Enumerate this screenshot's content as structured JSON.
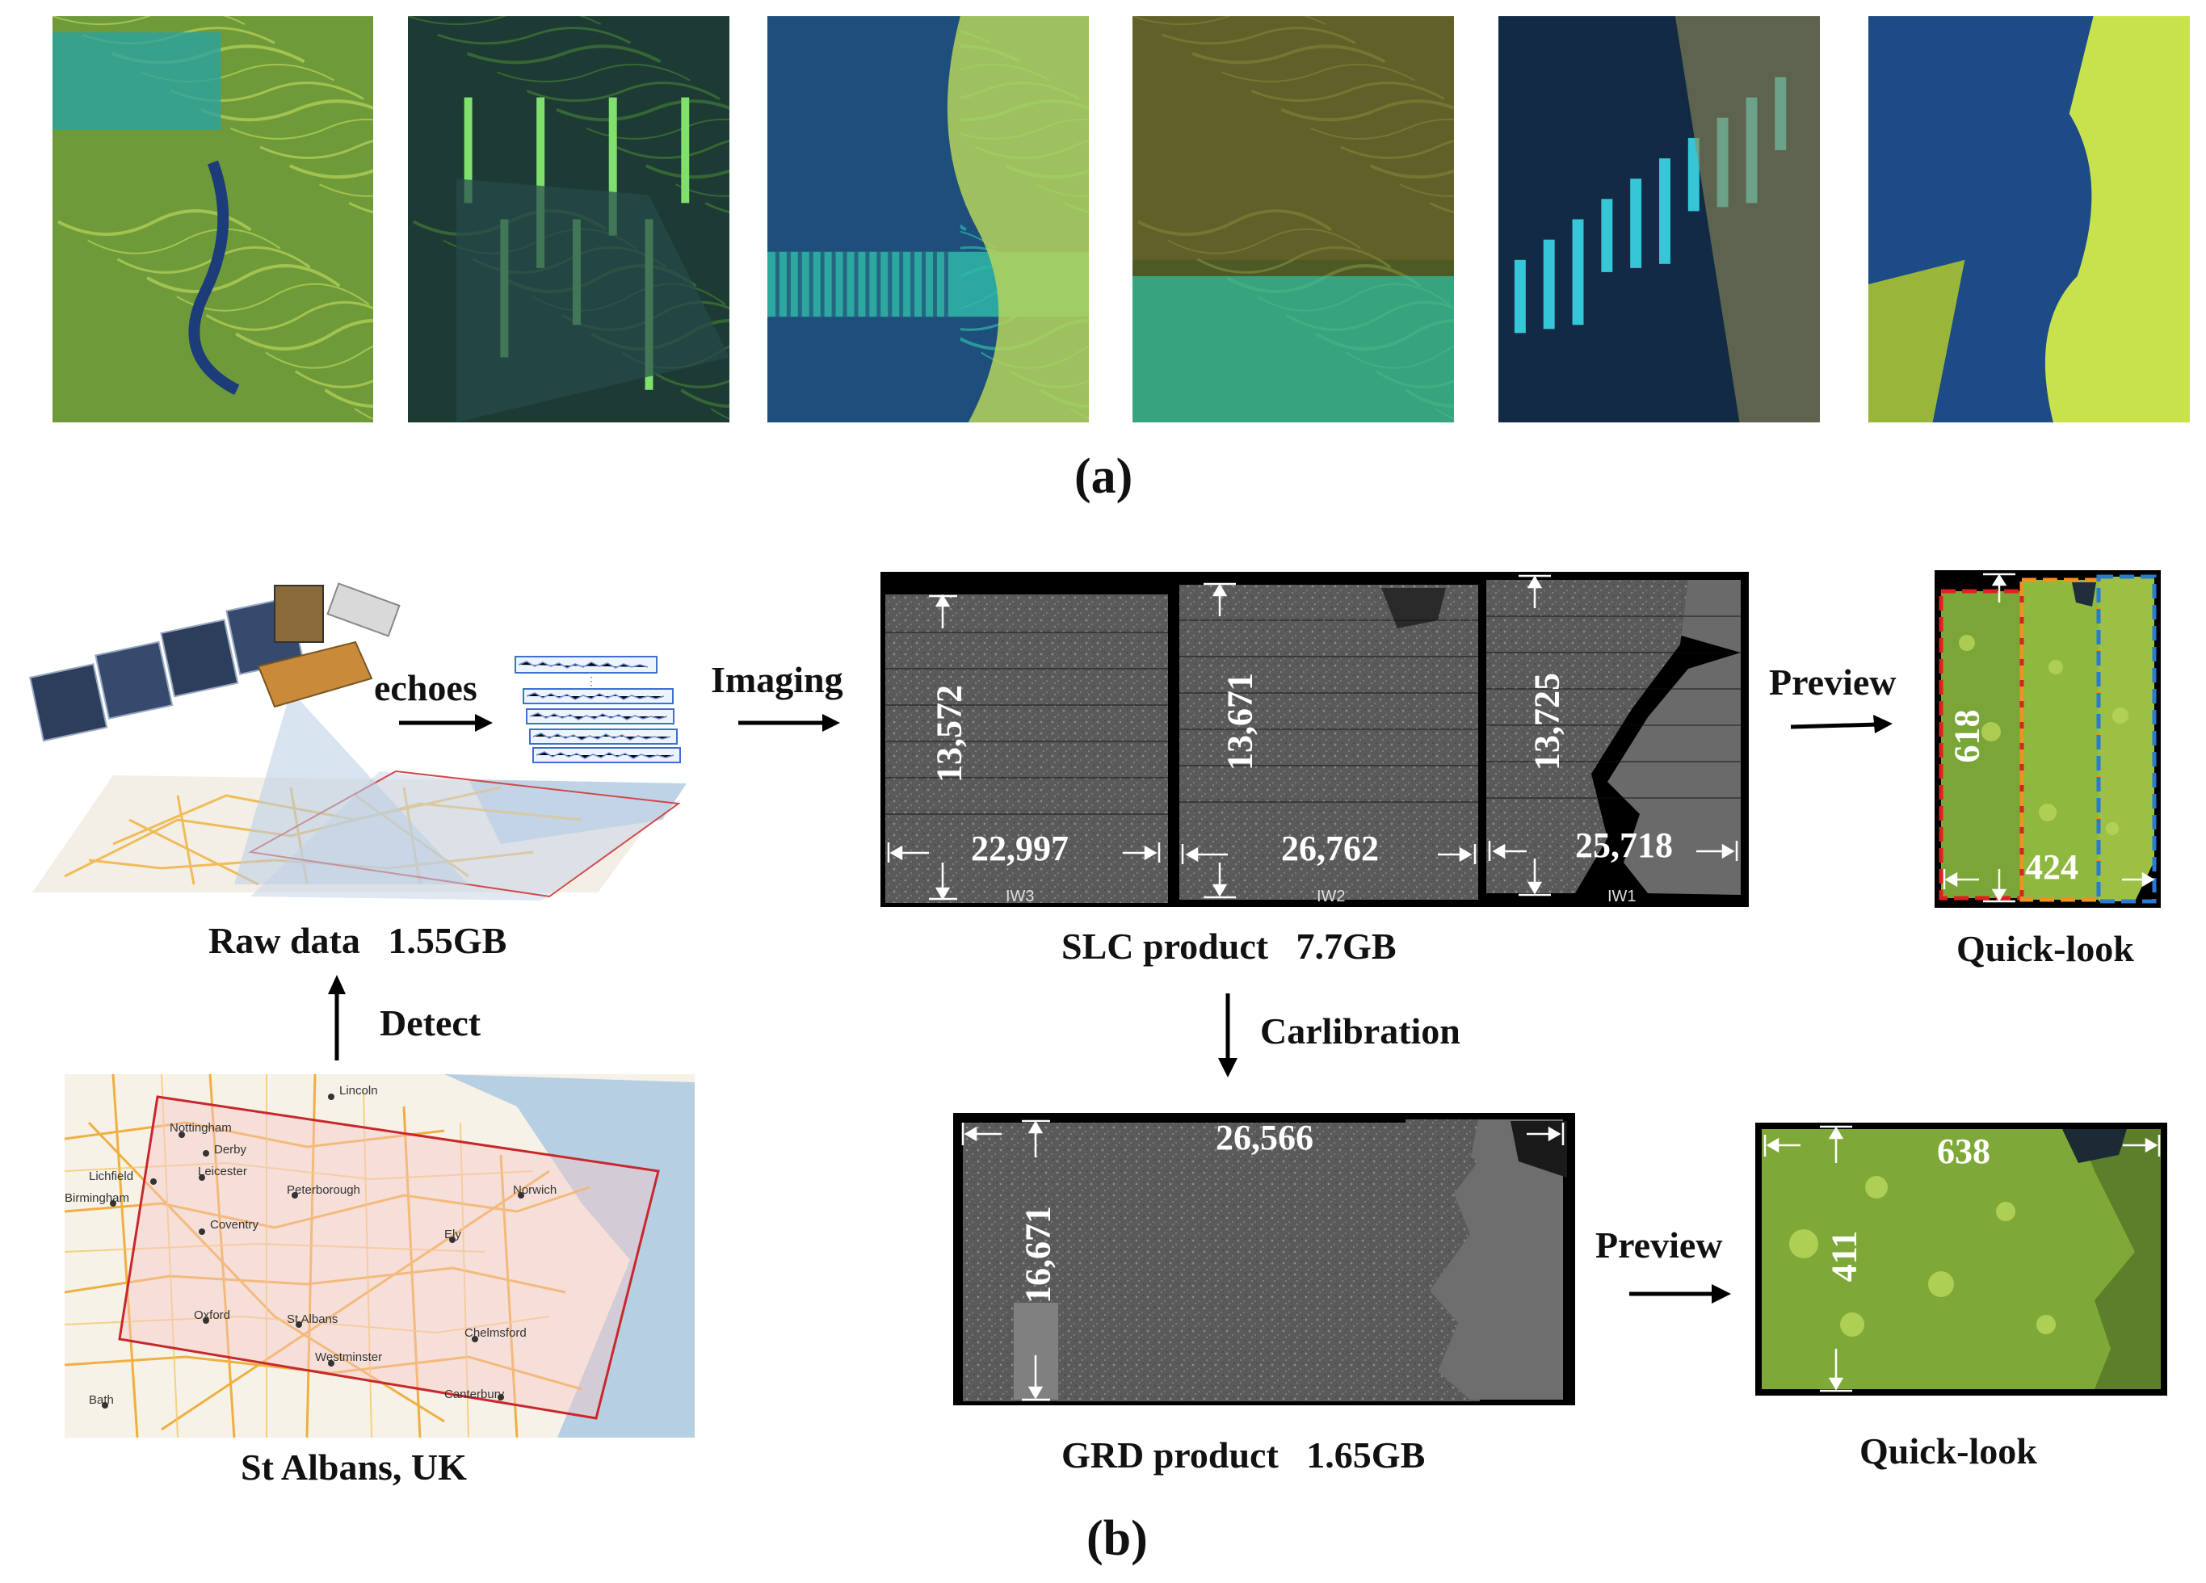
{
  "panel_a": {
    "caption": "(a)",
    "thumbnails": [
      {
        "name": "thumb-1",
        "colors": [
          "#6f9a3a",
          "#b9d45a",
          "#2aa3a0",
          "#1c3c7a"
        ]
      },
      {
        "name": "thumb-2",
        "colors": [
          "#1d3a34",
          "#3f7a36",
          "#7fe06e",
          "#274a4c"
        ]
      },
      {
        "name": "thumb-3",
        "colors": [
          "#1e4f7c",
          "#2fb7a8",
          "#b5d35a",
          "#223b6c"
        ]
      },
      {
        "name": "thumb-4",
        "colors": [
          "#4c5b26",
          "#7a8a3a",
          "#2fc3a5",
          "#8a6b32"
        ]
      },
      {
        "name": "thumb-5",
        "colors": [
          "#132a45",
          "#35c6d8",
          "#2c4c6a",
          "#8f8a55"
        ]
      },
      {
        "name": "thumb-6",
        "colors": [
          "#1d4b86",
          "#c8e24e",
          "#2b5fa0",
          "#9ab63a"
        ]
      }
    ]
  },
  "panel_b": {
    "caption": "(b)",
    "raw_label": "Raw data   1.55GB",
    "echoes_label": "echoes",
    "imaging_label": "Imaging",
    "detect_label": "Detect",
    "location_label": "St Albans, UK",
    "map_cities": [
      "Lincoln",
      "Nottingham",
      "Derby",
      "Leicester",
      "Peterborough",
      "Norwich",
      "Birmingham",
      "Coventry",
      "Ely",
      "Oxford",
      "St Albans",
      "Chelmsford",
      "Westminster",
      "Canterbury",
      "Bath",
      "Lichfield"
    ],
    "slc": {
      "label": "SLC product   7.7GB",
      "swaths": [
        {
          "name": "IW3",
          "height": "13,572",
          "width": "22,997"
        },
        {
          "name": "IW2",
          "height": "13,671",
          "width": "26,762"
        },
        {
          "name": "IW1",
          "height": "13,725",
          "width": "25,718"
        }
      ]
    },
    "calibration_label": "Carlibration",
    "grd": {
      "label": "GRD product   1.65GB",
      "height": "16,671",
      "width": "26,566"
    },
    "preview_label": "Preview",
    "quicklook_slc": {
      "label": "Quick-look",
      "height": "618",
      "width": "424"
    },
    "quicklook_grd": {
      "label": "Quick-look",
      "height": "411",
      "width": "638"
    }
  }
}
